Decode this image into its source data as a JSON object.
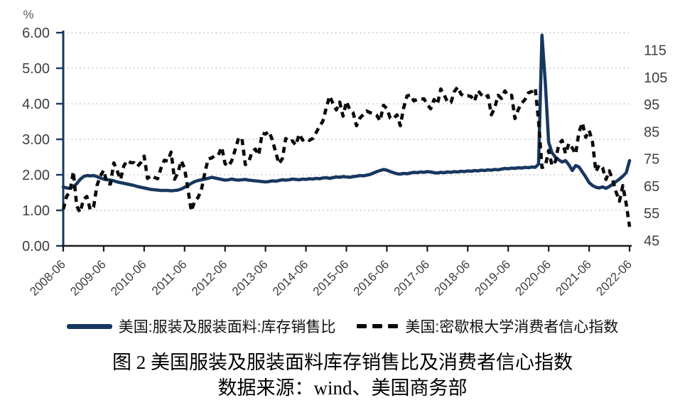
{
  "figure": {
    "caption_title": "图 2 美国服装及服装面料库存销售比及消费者信心指数",
    "caption_source": "数据来源：wind、美国商务部"
  },
  "legend": {
    "series1_label": "美国:服装及服装面料:库存销售比",
    "series2_label": "美国:密歇根大学消费者信心指数"
  },
  "colors": {
    "navy": "#17375E",
    "black_series": "#0A0A0A",
    "grid": "#C3C3C3",
    "axis_black": "#1A1A1A",
    "tick_label": "#3F3F3F",
    "unit_label": "#595959"
  },
  "chart_data": {
    "type": "line",
    "title": "图 2 美国服装及服装面料库存销售比及消费者信心指数",
    "unit_label": "%",
    "x_freq": "monthly",
    "x_start": "2008-06",
    "x_end": "2022-06",
    "x_tick_labels": [
      "2008-06",
      "2009-06",
      "2010-06",
      "2011-06",
      "2012-06",
      "2013-06",
      "2014-06",
      "2015-06",
      "2016-06",
      "2017-06",
      "2018-06",
      "2019-06",
      "2020-06",
      "2021-06",
      "2022-06"
    ],
    "grid": "horizontal-dotted",
    "legend_position": "bottom",
    "left_axis": {
      "lim": [
        0,
        6
      ],
      "tick_labels": [
        "0.00",
        "1.00",
        "2.00",
        "3.00",
        "4.00",
        "5.00",
        "6.00"
      ],
      "tick_values": [
        0,
        1,
        2,
        3,
        4,
        5,
        6
      ]
    },
    "right_axis": {
      "lim_effective": [
        43,
        121.4
      ],
      "tick_labels": [
        "45",
        "55",
        "65",
        "75",
        "85",
        "95",
        "105",
        "115"
      ],
      "tick_values": [
        45,
        55,
        65,
        75,
        85,
        95,
        105,
        115
      ]
    },
    "series": [
      {
        "name": "美国:服装及服装面料:库存销售比",
        "axis": "left",
        "style": "solid",
        "color": "#17375E",
        "values": [
          1.66,
          1.63,
          1.62,
          1.67,
          1.75,
          1.87,
          1.95,
          1.98,
          1.97,
          1.98,
          1.95,
          1.91,
          1.88,
          1.86,
          1.85,
          1.83,
          1.8,
          1.78,
          1.76,
          1.74,
          1.72,
          1.7,
          1.67,
          1.65,
          1.63,
          1.61,
          1.59,
          1.58,
          1.57,
          1.56,
          1.56,
          1.56,
          1.55,
          1.56,
          1.57,
          1.6,
          1.65,
          1.7,
          1.76,
          1.81,
          1.84,
          1.86,
          1.88,
          1.9,
          1.93,
          1.91,
          1.89,
          1.87,
          1.85,
          1.86,
          1.88,
          1.86,
          1.85,
          1.86,
          1.87,
          1.85,
          1.84,
          1.83,
          1.82,
          1.81,
          1.8,
          1.81,
          1.83,
          1.82,
          1.84,
          1.86,
          1.85,
          1.86,
          1.88,
          1.87,
          1.86,
          1.88,
          1.87,
          1.89,
          1.88,
          1.9,
          1.89,
          1.91,
          1.92,
          1.9,
          1.92,
          1.94,
          1.93,
          1.95,
          1.94,
          1.93,
          1.95,
          1.96,
          1.98,
          1.97,
          1.99,
          2.01,
          2.05,
          2.09,
          2.12,
          2.15,
          2.13,
          2.09,
          2.06,
          2.03,
          2.02,
          2.04,
          2.03,
          2.05,
          2.07,
          2.06,
          2.08,
          2.07,
          2.09,
          2.08,
          2.06,
          2.05,
          2.07,
          2.06,
          2.08,
          2.07,
          2.09,
          2.08,
          2.1,
          2.09,
          2.11,
          2.1,
          2.12,
          2.11,
          2.13,
          2.12,
          2.14,
          2.13,
          2.15,
          2.14,
          2.16,
          2.18,
          2.17,
          2.19,
          2.18,
          2.2,
          2.19,
          2.21,
          2.2,
          2.22,
          2.21,
          2.3,
          5.93,
          4.6,
          2.92,
          2.62,
          2.5,
          2.42,
          2.36,
          2.4,
          2.28,
          2.12,
          2.26,
          2.22,
          2.08,
          1.94,
          1.78,
          1.7,
          1.65,
          1.63,
          1.66,
          1.62,
          1.67,
          1.74,
          1.81,
          1.88,
          1.96,
          2.06,
          2.4
        ]
      },
      {
        "name": "美国:密歇根大学消费者信心指数",
        "axis": "right",
        "style": "dashed",
        "color": "#0A0A0A",
        "values": [
          56.4,
          61.2,
          63.0,
          70.3,
          57.6,
          55.3,
          60.1,
          61.2,
          56.3,
          57.3,
          65.1,
          68.7,
          70.8,
          66.0,
          65.7,
          73.5,
          70.6,
          67.4,
          72.5,
          74.4,
          73.6,
          73.6,
          72.2,
          73.6,
          76.0,
          67.8,
          68.9,
          68.2,
          67.7,
          71.6,
          74.5,
          74.2,
          77.5,
          67.5,
          69.8,
          74.3,
          71.5,
          63.7,
          55.8,
          59.5,
          60.8,
          63.7,
          69.9,
          75.0,
          75.3,
          76.2,
          76.4,
          79.3,
          73.2,
          72.3,
          74.3,
          78.3,
          82.6,
          82.7,
          72.9,
          73.8,
          77.6,
          78.6,
          76.4,
          84.5,
          84.1,
          85.1,
          82.1,
          77.5,
          73.2,
          75.1,
          82.5,
          81.2,
          81.6,
          80.0,
          84.1,
          81.9,
          82.5,
          81.8,
          82.5,
          84.6,
          86.9,
          88.8,
          93.6,
          98.1,
          95.4,
          93.0,
          95.9,
          90.7,
          96.1,
          93.1,
          91.9,
          87.2,
          90.0,
          91.3,
          92.6,
          92.0,
          91.7,
          91.0,
          89.0,
          94.7,
          93.5,
          90.0,
          89.8,
          91.2,
          87.2,
          93.8,
          98.2,
          98.5,
          96.3,
          96.9,
          97.0,
          97.1,
          95.0,
          93.4,
          96.8,
          95.1,
          100.7,
          98.5,
          95.9,
          95.7,
          99.7,
          101.4,
          98.8,
          98.0,
          98.2,
          97.9,
          96.2,
          100.1,
          98.6,
          97.5,
          98.3,
          91.2,
          93.8,
          98.4,
          97.2,
          100.0,
          98.2,
          98.4,
          89.8,
          93.2,
          95.5,
          96.8,
          99.3,
          99.8,
          101.0,
          89.1,
          71.8,
          72.3,
          78.1,
          72.5,
          74.1,
          80.4,
          81.8,
          76.9,
          80.7,
          79.0,
          76.8,
          84.9,
          88.3,
          82.9,
          85.5,
          81.2,
          70.3,
          72.8,
          71.7,
          67.4,
          70.6,
          67.2,
          62.8,
          59.4,
          65.2,
          58.4,
          50.0
        ]
      }
    ]
  }
}
